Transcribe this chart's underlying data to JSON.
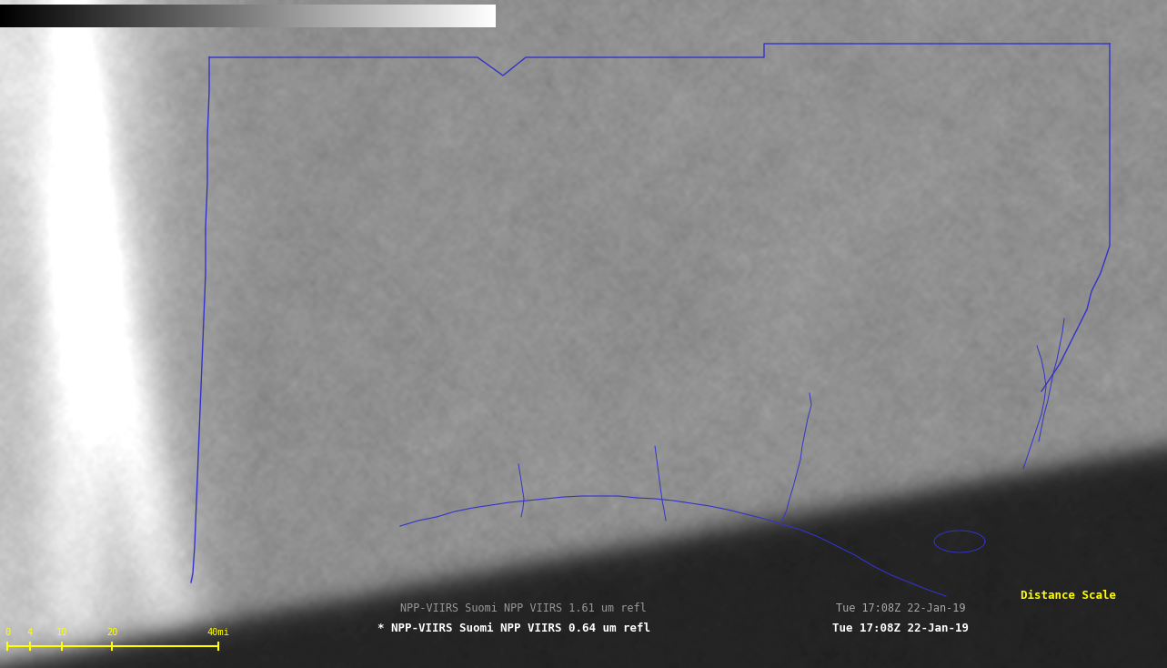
{
  "fig_width": 12.83,
  "fig_height": 7.34,
  "dpi": 100,
  "bg_color": "#111111",
  "bottom_text_1": "NPP-VIIRS Suomi NPP VIIRS 1.61 um refl",
  "bottom_text_2": "* NPP-VIIRS Suomi NPP VIIRS 0.64 um refl",
  "bottom_text_color_1": "#999999",
  "bottom_text_color_2": "#ffffff",
  "timestamp_1": "Tue 17:08Z 22-Jan-19",
  "timestamp_2": "Tue 17:08Z 22-Jan-19",
  "timestamp_color": "#aaaaaa",
  "distance_scale_label": "Distance Scale",
  "distance_scale_color": "#ffff00",
  "scale_labels": [
    "0",
    "4",
    "10",
    "20",
    "40mi"
  ],
  "state_border_color": "#3333cc",
  "coast_color": "#3333cc",
  "satellite_seed": 1234
}
